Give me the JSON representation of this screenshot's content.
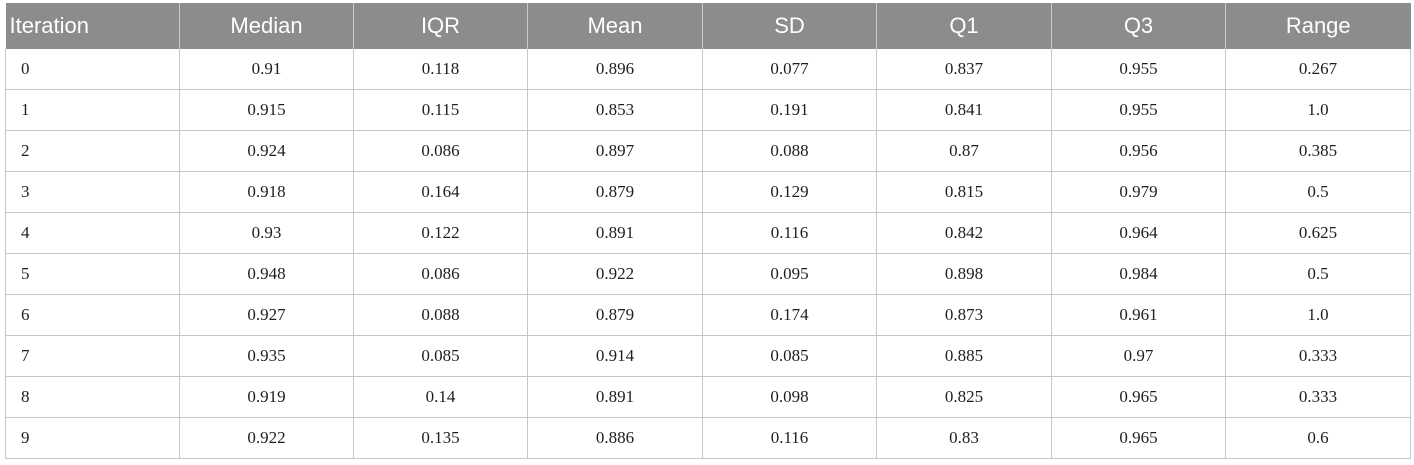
{
  "table": {
    "headers": [
      "Iteration",
      "Median",
      "IQR",
      "Mean",
      "SD",
      "Q1",
      "Q3",
      "Range"
    ],
    "rows": [
      [
        "0",
        "0.91",
        "0.118",
        "0.896",
        "0.077",
        "0.837",
        "0.955",
        "0.267"
      ],
      [
        "1",
        "0.915",
        "0.115",
        "0.853",
        "0.191",
        "0.841",
        "0.955",
        "1.0"
      ],
      [
        "2",
        "0.924",
        "0.086",
        "0.897",
        "0.088",
        "0.87",
        "0.956",
        "0.385"
      ],
      [
        "3",
        "0.918",
        "0.164",
        "0.879",
        "0.129",
        "0.815",
        "0.979",
        "0.5"
      ],
      [
        "4",
        "0.93",
        "0.122",
        "0.891",
        "0.116",
        "0.842",
        "0.964",
        "0.625"
      ],
      [
        "5",
        "0.948",
        "0.086",
        "0.922",
        "0.095",
        "0.898",
        "0.984",
        "0.5"
      ],
      [
        "6",
        "0.927",
        "0.088",
        "0.879",
        "0.174",
        "0.873",
        "0.961",
        "1.0"
      ],
      [
        "7",
        "0.935",
        "0.085",
        "0.914",
        "0.085",
        "0.885",
        "0.97",
        "0.333"
      ],
      [
        "8",
        "0.919",
        "0.14",
        "0.891",
        "0.098",
        "0.825",
        "0.965",
        "0.333"
      ],
      [
        "9",
        "0.922",
        "0.135",
        "0.886",
        "0.116",
        "0.83",
        "0.965",
        "0.6"
      ]
    ]
  }
}
